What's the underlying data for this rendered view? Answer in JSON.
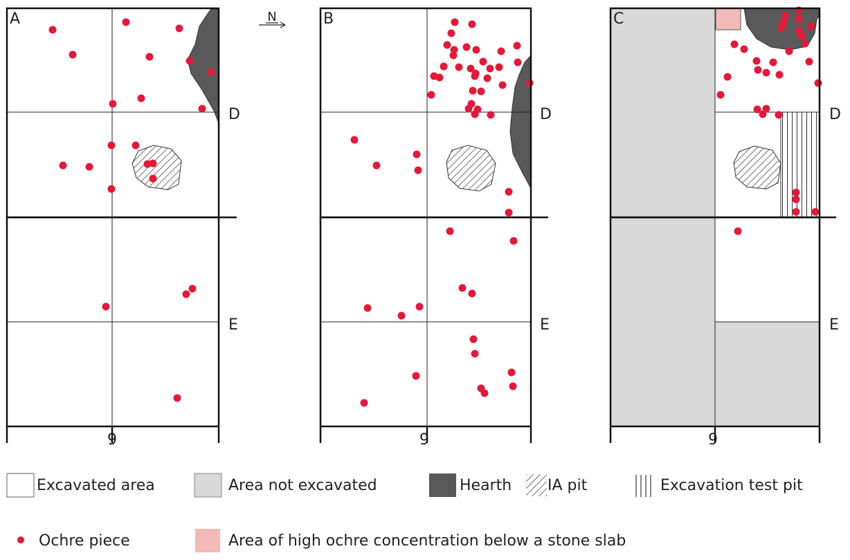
{
  "north_label": "N",
  "panels": [
    {
      "letter": "A",
      "row_labels": [
        "D",
        "E"
      ],
      "col_label": "9"
    },
    {
      "letter": "B",
      "row_labels": [
        "D",
        "E"
      ],
      "col_label": "9"
    },
    {
      "letter": "C",
      "row_labels": [
        "D",
        "E"
      ],
      "col_label": "9"
    }
  ],
  "legend": {
    "excavated": "Excavated area",
    "not_excavated": "Area not excavated",
    "hearth": "Hearth",
    "ia_pit": "IA pit",
    "test_pit": "Excavation test pit",
    "ochre": "Ochre piece",
    "high_conc": "Area of high ochre concentration below  a stone slab"
  },
  "colors": {
    "ochre": "#e01a38",
    "hearth": "#595959",
    "not_excavated": "#d9d9d9",
    "high_conc": "#f4b9b9"
  },
  "ochre_points": {
    "A": [
      [
        76,
        43
      ],
      [
        105,
        79
      ],
      [
        182,
        32
      ],
      [
        259,
        41
      ],
      [
        216,
        82
      ],
      [
        274,
        88
      ],
      [
        305,
        104
      ],
      [
        204,
        142
      ],
      [
        163,
        150
      ],
      [
        292,
        157
      ],
      [
        161,
        210
      ],
      [
        196,
        210
      ],
      [
        91,
        239
      ],
      [
        129,
        241
      ],
      [
        213,
        237
      ],
      [
        221,
        236
      ],
      [
        221,
        258
      ],
      [
        161,
        273
      ],
      [
        153,
        443
      ],
      [
        278,
        417
      ],
      [
        269,
        425
      ],
      [
        256,
        575
      ]
    ],
    "B": [
      [
        657,
        32
      ],
      [
        682,
        35
      ],
      [
        652,
        48
      ],
      [
        646,
        65
      ],
      [
        656,
        72
      ],
      [
        655,
        80
      ],
      [
        674,
        68
      ],
      [
        688,
        72
      ],
      [
        724,
        74
      ],
      [
        747,
        66
      ],
      [
        641,
        96
      ],
      [
        663,
        97
      ],
      [
        680,
        99
      ],
      [
        687,
        106
      ],
      [
        698,
        89
      ],
      [
        708,
        99
      ],
      [
        721,
        97
      ],
      [
        748,
        90
      ],
      [
        627,
        110
      ],
      [
        635,
        112
      ],
      [
        686,
        110
      ],
      [
        704,
        113
      ],
      [
        726,
        123
      ],
      [
        683,
        131
      ],
      [
        695,
        132
      ],
      [
        765,
        120
      ],
      [
        623,
        137
      ],
      [
        681,
        150
      ],
      [
        677,
        157
      ],
      [
        690,
        158
      ],
      [
        686,
        165
      ],
      [
        709,
        166
      ],
      [
        512,
        202
      ],
      [
        602,
        223
      ],
      [
        604,
        246
      ],
      [
        544,
        239
      ],
      [
        735,
        277
      ],
      [
        735,
        307
      ],
      [
        650,
        334
      ],
      [
        742,
        348
      ],
      [
        668,
        416
      ],
      [
        682,
        424
      ],
      [
        531,
        445
      ],
      [
        580,
        456
      ],
      [
        606,
        443
      ],
      [
        684,
        490
      ],
      [
        686,
        511
      ],
      [
        601,
        543
      ],
      [
        739,
        538
      ],
      [
        741,
        558
      ],
      [
        695,
        561
      ],
      [
        700,
        568
      ],
      [
        526,
        582
      ]
    ],
    "C": [
      [
        1134,
        22
      ],
      [
        1154,
        15
      ],
      [
        1132,
        32
      ],
      [
        1154,
        28
      ],
      [
        1129,
        40
      ],
      [
        1154,
        44
      ],
      [
        1172,
        38
      ],
      [
        1158,
        52
      ],
      [
        1163,
        63
      ],
      [
        1061,
        64
      ],
      [
        1075,
        71
      ],
      [
        1140,
        74
      ],
      [
        1093,
        88
      ],
      [
        1117,
        90
      ],
      [
        1095,
        101
      ],
      [
        1107,
        105
      ],
      [
        1169,
        89
      ],
      [
        1126,
        108
      ],
      [
        1182,
        120
      ],
      [
        1051,
        111
      ],
      [
        1041,
        137
      ],
      [
        1094,
        158
      ],
      [
        1102,
        165
      ],
      [
        1107,
        157
      ],
      [
        1125,
        166
      ],
      [
        1150,
        278
      ],
      [
        1150,
        288
      ],
      [
        1150,
        306
      ],
      [
        1178,
        306
      ],
      [
        1066,
        334
      ]
    ]
  }
}
